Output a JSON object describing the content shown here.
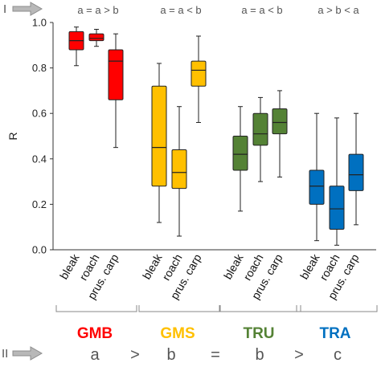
{
  "chart_data": {
    "type": "box",
    "ylabel": "R",
    "ylim": [
      0,
      1.0
    ],
    "yticks": [
      "0.0",
      "0.2",
      "0.4",
      "0.6",
      "0.8",
      "1.0"
    ],
    "top_marker": "I",
    "bottom_marker": "II",
    "categories": [
      "bleak",
      "roach",
      "prus. carp"
    ],
    "groups": [
      {
        "name": "GMB",
        "color": "#ff0000",
        "relation": "a = a > b",
        "boxes": [
          {
            "label": "bleak",
            "whisker_low": 0.81,
            "q1": 0.88,
            "median": 0.92,
            "q3": 0.96,
            "whisker_high": 0.98
          },
          {
            "label": "roach",
            "whisker_low": 0.895,
            "q1": 0.92,
            "median": 0.93,
            "q3": 0.95,
            "whisker_high": 0.97
          },
          {
            "label": "prus. carp",
            "whisker_low": 0.45,
            "q1": 0.66,
            "median": 0.83,
            "q3": 0.88,
            "whisker_high": 0.95
          }
        ]
      },
      {
        "name": "GMS",
        "color": "#ffc000",
        "relation": "a = a < b",
        "boxes": [
          {
            "label": "bleak",
            "whisker_low": 0.12,
            "q1": 0.28,
            "median": 0.45,
            "q3": 0.72,
            "whisker_high": 0.82
          },
          {
            "label": "roach",
            "whisker_low": 0.06,
            "q1": 0.27,
            "median": 0.34,
            "q3": 0.44,
            "whisker_high": 0.63
          },
          {
            "label": "prus. carp",
            "whisker_low": 0.56,
            "q1": 0.72,
            "median": 0.79,
            "q3": 0.83,
            "whisker_high": 0.94
          }
        ]
      },
      {
        "name": "TRU",
        "color": "#548235",
        "relation": "a = a < b",
        "boxes": [
          {
            "label": "bleak",
            "whisker_low": 0.17,
            "q1": 0.35,
            "median": 0.42,
            "q3": 0.5,
            "whisker_high": 0.63
          },
          {
            "label": "roach",
            "whisker_low": 0.3,
            "q1": 0.46,
            "median": 0.51,
            "q3": 0.6,
            "whisker_high": 0.67
          },
          {
            "label": "prus. carp",
            "whisker_low": 0.32,
            "q1": 0.51,
            "median": 0.56,
            "q3": 0.62,
            "whisker_high": 0.7
          }
        ]
      },
      {
        "name": "TRA",
        "color": "#0070c0",
        "relation": "a > b < a",
        "boxes": [
          {
            "label": "bleak",
            "whisker_low": 0.04,
            "q1": 0.2,
            "median": 0.28,
            "q3": 0.35,
            "whisker_high": 0.6
          },
          {
            "label": "roach",
            "whisker_low": 0.02,
            "q1": 0.09,
            "median": 0.18,
            "q3": 0.28,
            "whisker_high": 0.58
          },
          {
            "label": "prus. carp",
            "whisker_low": 0.11,
            "q1": 0.26,
            "median": 0.33,
            "q3": 0.42,
            "whisker_high": 0.6
          }
        ]
      }
    ],
    "bottom_relation": [
      "a",
      ">",
      "b",
      "=",
      "b",
      ">",
      "c"
    ]
  }
}
